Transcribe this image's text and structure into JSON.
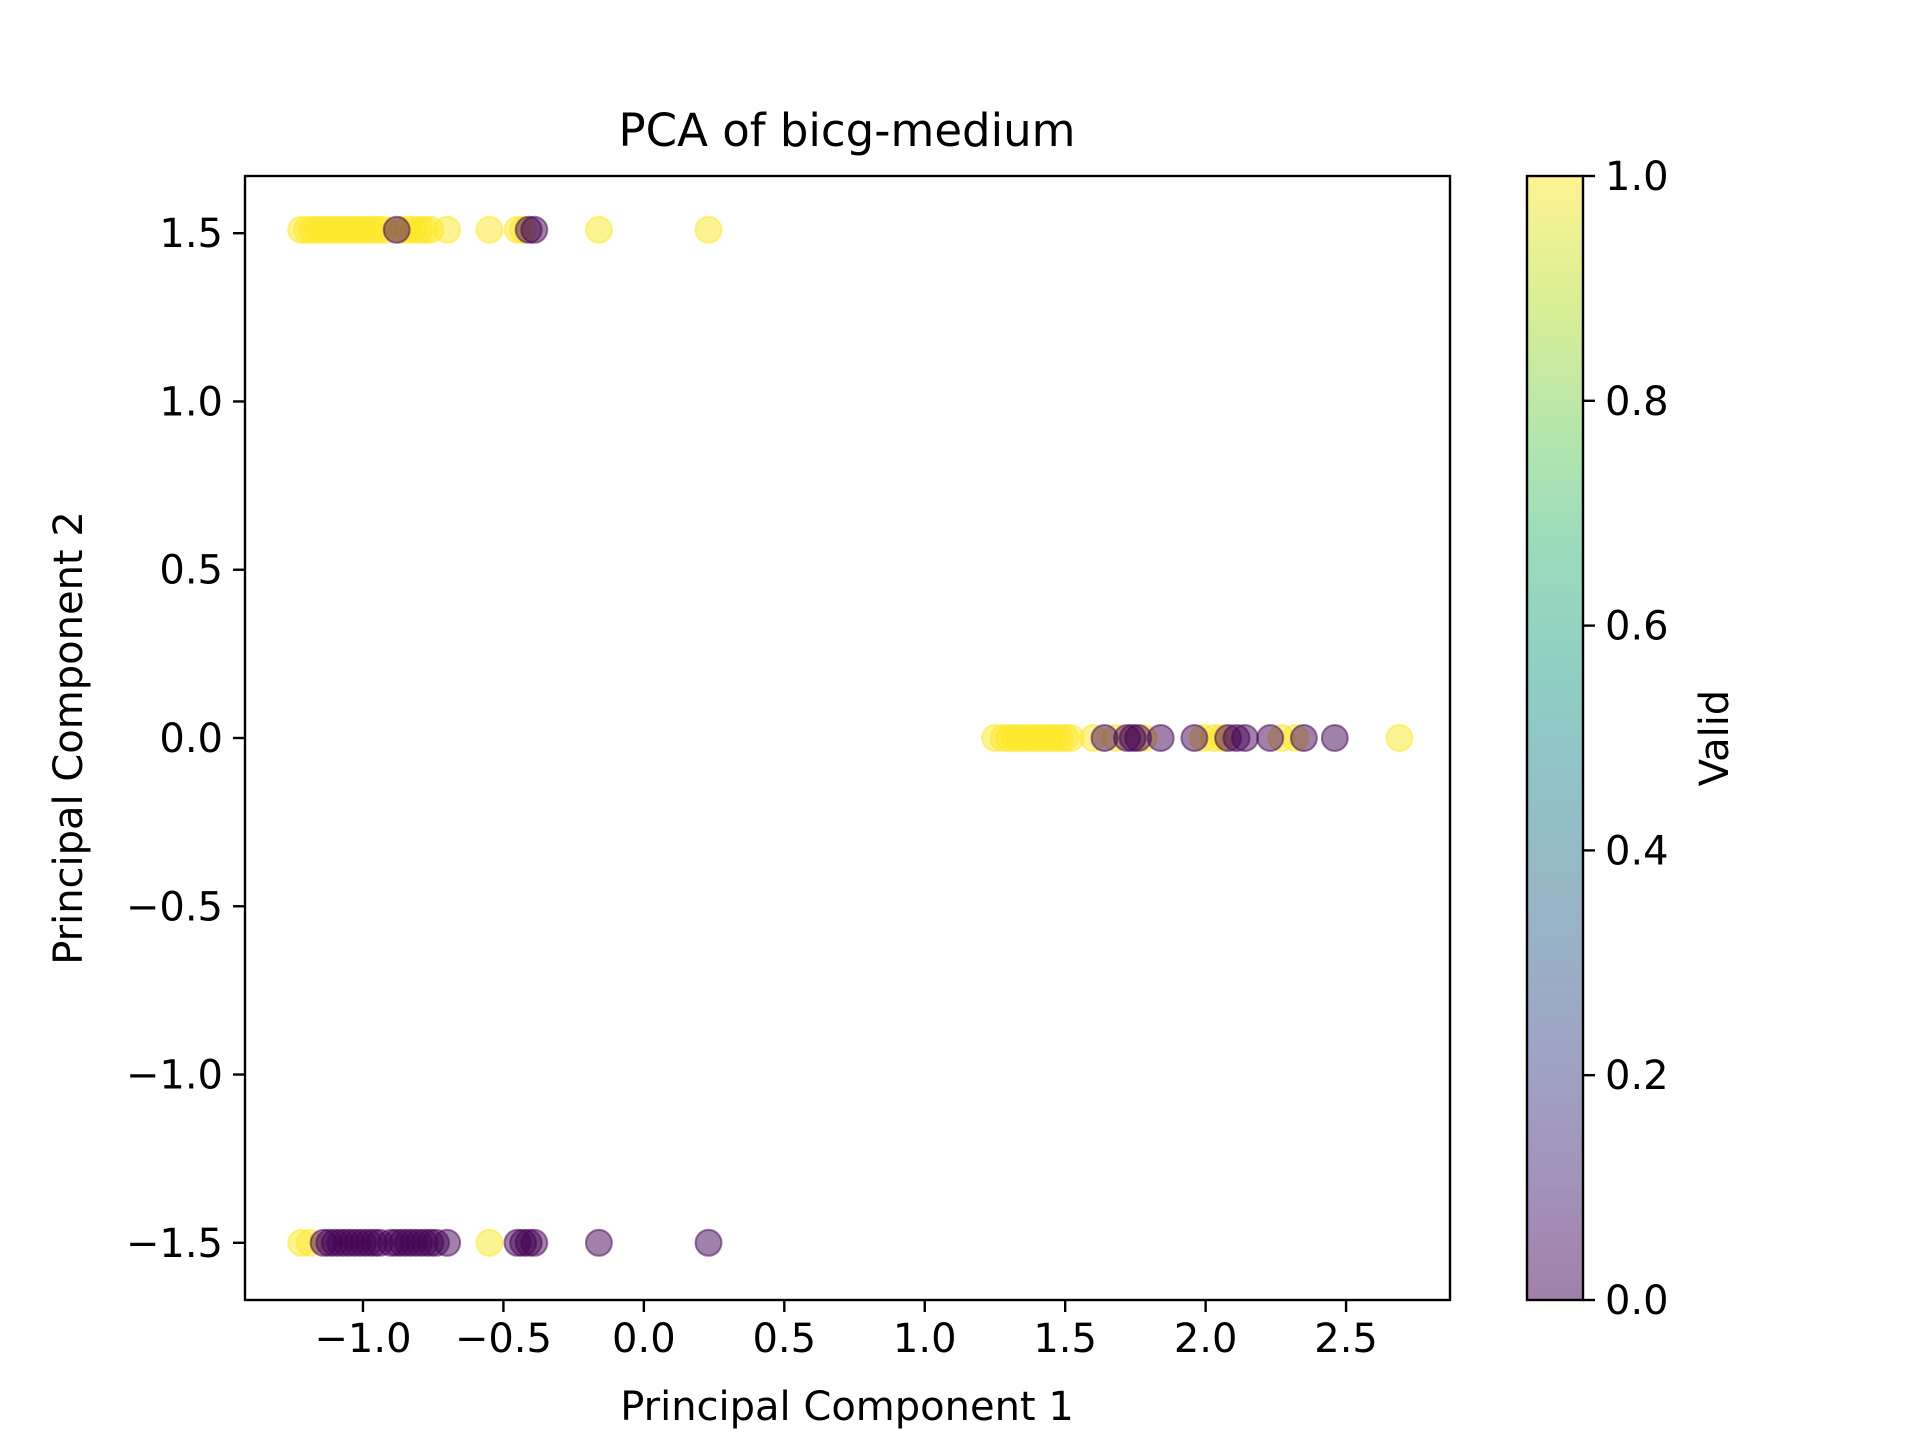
{
  "chart_data": {
    "type": "scatter",
    "title": "PCA of bicg-medium",
    "xlabel": "Principal Component 1",
    "ylabel": "Principal Component 2",
    "xlim": [
      -1.42,
      2.87
    ],
    "ylim": [
      -1.67,
      1.67
    ],
    "grid": false,
    "x_ticks": [
      -1.0,
      -0.5,
      0.0,
      0.5,
      1.0,
      1.5,
      2.0,
      2.5
    ],
    "x_tick_labels": [
      "−1.0",
      "−0.5",
      "0.0",
      "0.5",
      "1.0",
      "1.5",
      "2.0",
      "2.5"
    ],
    "y_ticks": [
      -1.5,
      -1.0,
      -0.5,
      0.0,
      0.5,
      1.0,
      1.5
    ],
    "y_tick_labels": [
      "−1.5",
      "−1.0",
      "−0.5",
      "0.0",
      "0.5",
      "1.0",
      "1.5"
    ],
    "colormap": "viridis",
    "point_alpha": 0.5,
    "colorbar": {
      "label": "Valid",
      "range": [
        0.0,
        1.0
      ],
      "ticks": [
        0.0,
        0.2,
        0.4,
        0.6,
        0.8,
        1.0
      ],
      "tick_labels": [
        "0.0",
        "0.2",
        "0.4",
        "0.6",
        "0.8",
        "1.0"
      ],
      "color_low": "#440154",
      "color_high": "#fde725",
      "stops": [
        "#440154",
        "#482878",
        "#3e4989",
        "#31688e",
        "#26828e",
        "#1f9e89",
        "#35b779",
        "#6ece58",
        "#b5de2b",
        "#fde725"
      ]
    },
    "series": [
      {
        "valid": 1,
        "points": [
          [
            -1.22,
            1.51
          ],
          [
            -1.2,
            1.51
          ],
          [
            -1.18,
            1.51
          ],
          [
            -1.16,
            1.51
          ],
          [
            -1.14,
            1.51
          ],
          [
            -1.12,
            1.51
          ],
          [
            -1.1,
            1.51
          ],
          [
            -1.08,
            1.51
          ],
          [
            -1.06,
            1.51
          ],
          [
            -1.04,
            1.51
          ],
          [
            -1.02,
            1.51
          ],
          [
            -1.0,
            1.51
          ],
          [
            -0.98,
            1.51
          ],
          [
            -0.96,
            1.51
          ],
          [
            -0.94,
            1.51
          ],
          [
            -0.92,
            1.51
          ],
          [
            -0.86,
            1.51
          ],
          [
            -0.84,
            1.51
          ],
          [
            -0.82,
            1.51
          ],
          [
            -0.8,
            1.51
          ],
          [
            -0.78,
            1.51
          ],
          [
            -0.76,
            1.51
          ],
          [
            -0.7,
            1.51
          ],
          [
            -0.55,
            1.51
          ],
          [
            -0.45,
            1.51
          ],
          [
            -0.43,
            1.51
          ],
          [
            -0.16,
            1.51
          ],
          [
            0.23,
            1.51
          ],
          [
            -1.22,
            -1.5
          ],
          [
            -1.19,
            -1.5
          ],
          [
            -0.55,
            -1.5
          ],
          [
            1.25,
            0.0
          ],
          [
            1.28,
            0.0
          ],
          [
            1.3,
            0.0
          ],
          [
            1.32,
            0.0
          ],
          [
            1.34,
            0.0
          ],
          [
            1.36,
            0.0
          ],
          [
            1.38,
            0.0
          ],
          [
            1.4,
            0.0
          ],
          [
            1.42,
            0.0
          ],
          [
            1.44,
            0.0
          ],
          [
            1.46,
            0.0
          ],
          [
            1.48,
            0.0
          ],
          [
            1.5,
            0.0
          ],
          [
            1.52,
            0.0
          ],
          [
            1.6,
            0.0
          ],
          [
            1.68,
            0.0
          ],
          [
            1.78,
            0.0
          ],
          [
            1.99,
            0.0
          ],
          [
            2.03,
            0.0
          ],
          [
            2.06,
            0.0
          ],
          [
            2.27,
            0.0
          ],
          [
            2.32,
            0.0
          ],
          [
            2.69,
            0.0
          ]
        ]
      },
      {
        "valid": 0,
        "points": [
          [
            -0.88,
            1.51
          ],
          [
            -0.41,
            1.51
          ],
          [
            -0.39,
            1.51
          ],
          [
            -1.14,
            -1.5
          ],
          [
            -1.12,
            -1.5
          ],
          [
            -1.1,
            -1.5
          ],
          [
            -1.08,
            -1.5
          ],
          [
            -1.06,
            -1.5
          ],
          [
            -1.04,
            -1.5
          ],
          [
            -1.02,
            -1.5
          ],
          [
            -1.0,
            -1.5
          ],
          [
            -0.98,
            -1.5
          ],
          [
            -0.96,
            -1.5
          ],
          [
            -0.94,
            -1.5
          ],
          [
            -0.9,
            -1.5
          ],
          [
            -0.88,
            -1.5
          ],
          [
            -0.86,
            -1.5
          ],
          [
            -0.84,
            -1.5
          ],
          [
            -0.82,
            -1.5
          ],
          [
            -0.8,
            -1.5
          ],
          [
            -0.78,
            -1.5
          ],
          [
            -0.76,
            -1.5
          ],
          [
            -0.74,
            -1.5
          ],
          [
            -0.7,
            -1.5
          ],
          [
            -0.45,
            -1.5
          ],
          [
            -0.43,
            -1.5
          ],
          [
            -0.41,
            -1.5
          ],
          [
            -0.39,
            -1.5
          ],
          [
            -0.16,
            -1.5
          ],
          [
            0.23,
            -1.5
          ],
          [
            1.64,
            0.0
          ],
          [
            1.72,
            0.0
          ],
          [
            1.74,
            0.0
          ],
          [
            1.76,
            0.0
          ],
          [
            1.84,
            0.0
          ],
          [
            1.96,
            0.0
          ],
          [
            2.08,
            0.0
          ],
          [
            2.11,
            0.0
          ],
          [
            2.14,
            0.0
          ],
          [
            2.23,
            0.0
          ],
          [
            2.35,
            0.0
          ],
          [
            2.46,
            0.0
          ]
        ]
      }
    ]
  }
}
